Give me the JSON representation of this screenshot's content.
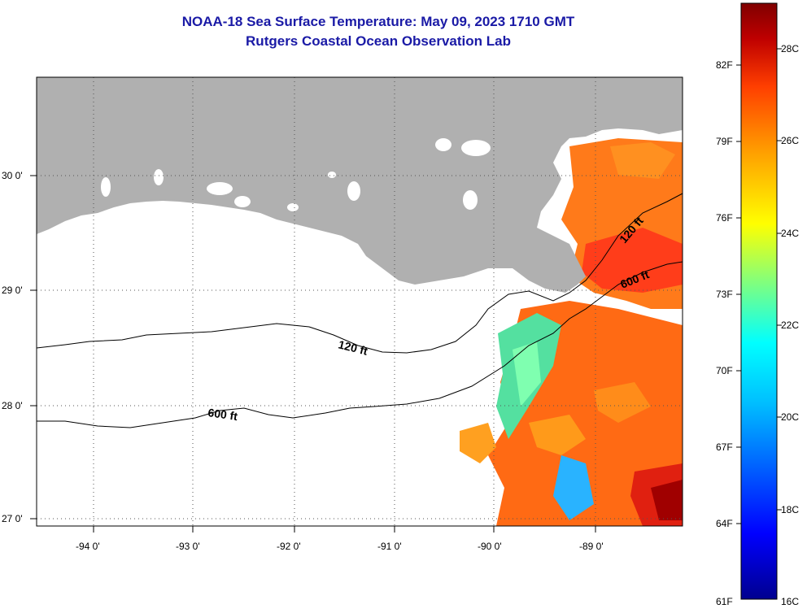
{
  "title": "NOAA-18 Sea Surface Temperature:  May 09, 2023 1710 GMT",
  "subtitle": "Rutgers Coastal Ocean Observation Lab",
  "map": {
    "lon_labels": [
      "-94 0'",
      "-93 0'",
      "-92 0'",
      "-91 0'",
      "-90 0'",
      "-89 0'"
    ],
    "lat_labels": [
      "30 0'",
      "29 0'",
      "28 0'",
      "27 0'"
    ],
    "contours": [
      {
        "label": "120 ft"
      },
      {
        "label": "120 ft"
      },
      {
        "label": "600 ft"
      },
      {
        "label": "600 ft"
      }
    ],
    "land_color": "#b0b0b0"
  },
  "colorbar": {
    "fahrenheit_labels": [
      "82F",
      "79F",
      "76F",
      "73F",
      "70F",
      "67F",
      "64F",
      "61F"
    ],
    "celsius_labels": [
      "28C",
      "26C",
      "24C",
      "22C",
      "20C",
      "18C",
      "16C"
    ],
    "colors": [
      "#00008f",
      "#0000ff",
      "#00bfff",
      "#00ffff",
      "#7fff7f",
      "#ffff00",
      "#ff9f00",
      "#ff3f00",
      "#bf0000",
      "#800000"
    ]
  }
}
